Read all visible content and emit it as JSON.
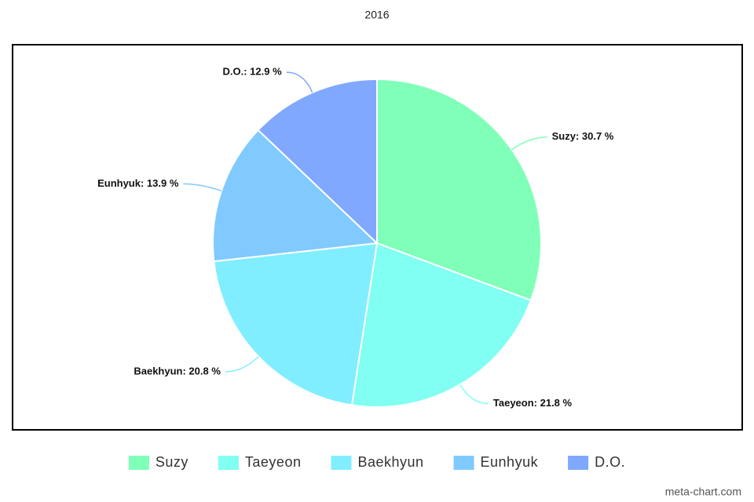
{
  "chart_data": {
    "type": "pie",
    "title": "2016",
    "categories": [
      "Suzy",
      "Taeyeon",
      "Baekhyun",
      "Eunhyuk",
      "D.O."
    ],
    "values": [
      30.7,
      21.8,
      20.8,
      13.9,
      12.9
    ],
    "value_labels": [
      "Suzy: 30.7 %",
      "Taeyeon: 21.8 %",
      "Baekhyun: 20.8 %",
      "Eunhyuk: 13.9 %",
      "D.O.: 12.9 %"
    ],
    "colors": [
      "#80ffb9",
      "#80fff2",
      "#80eeff",
      "#80caff",
      "#80a8ff"
    ],
    "legend": "bottom",
    "watermark": "meta-chart.com"
  }
}
